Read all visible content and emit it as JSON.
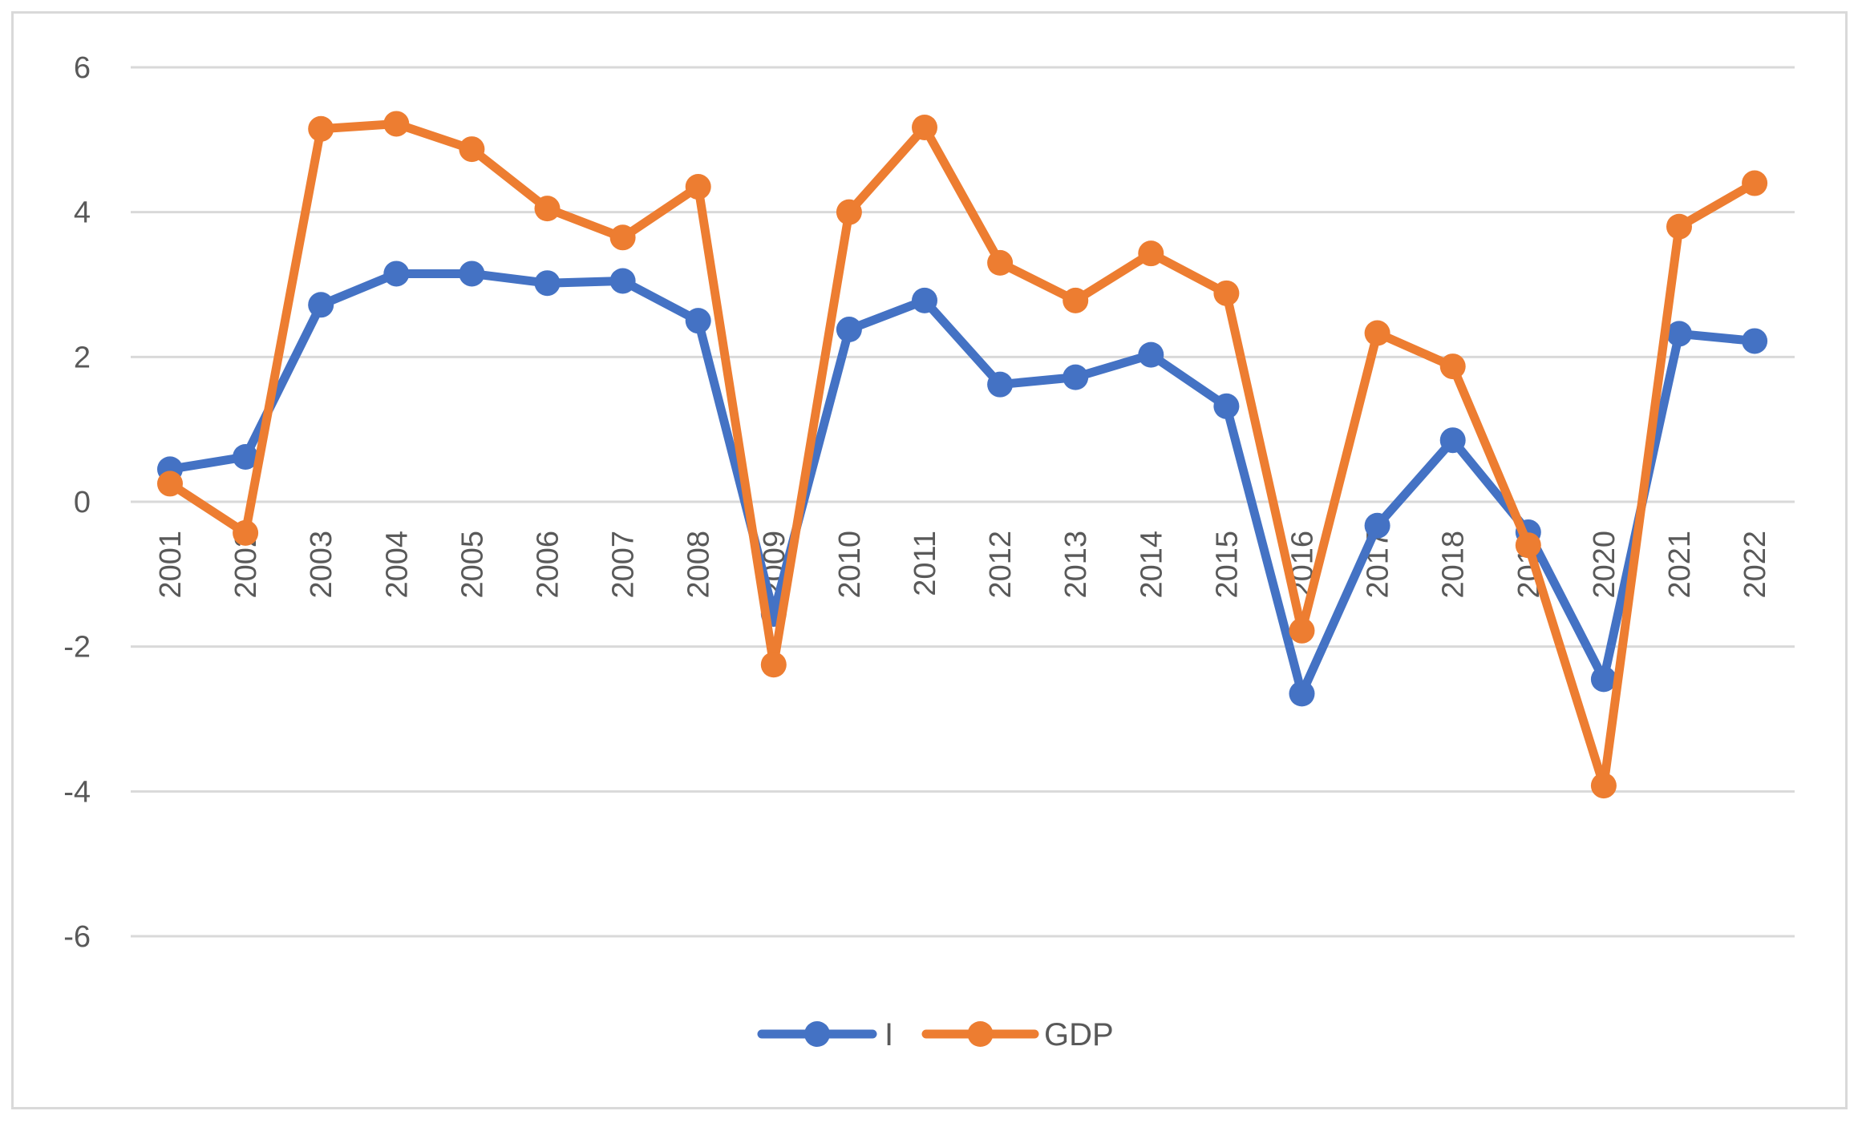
{
  "chart_data": {
    "type": "line",
    "title": "",
    "xlabel": "",
    "ylabel": "",
    "categories": [
      "2001",
      "2002",
      "2003",
      "2004",
      "2005",
      "2006",
      "2007",
      "2008",
      "2009",
      "2010",
      "2011",
      "2012",
      "2013",
      "2014",
      "2015",
      "2016",
      "2017",
      "2018",
      "2019",
      "2020",
      "2021",
      "2022"
    ],
    "ylim": [
      -6,
      6
    ],
    "yticks": [
      6,
      4,
      2,
      0,
      -2,
      -4,
      -6
    ],
    "ytick_labels": [
      "6",
      "4",
      "2",
      "0",
      "-2",
      "-4",
      "-6"
    ],
    "grid": true,
    "legend_position": "bottom",
    "series": [
      {
        "name": "I",
        "color": "#4472c4",
        "values": [
          0.45,
          0.62,
          2.72,
          3.15,
          3.15,
          3.02,
          3.05,
          2.5,
          -1.55,
          2.38,
          2.78,
          1.62,
          1.72,
          2.03,
          1.32,
          -2.65,
          -0.33,
          0.85,
          -0.42,
          -2.45,
          2.32,
          2.22
        ]
      },
      {
        "name": "GDP",
        "color": "#ed7d31",
        "values": [
          0.25,
          -0.43,
          5.15,
          5.22,
          4.87,
          4.05,
          3.65,
          4.35,
          -2.25,
          4.0,
          5.17,
          3.3,
          2.78,
          3.43,
          2.88,
          -1.78,
          2.33,
          1.87,
          -0.6,
          -3.92,
          3.8,
          4.4
        ]
      }
    ]
  }
}
